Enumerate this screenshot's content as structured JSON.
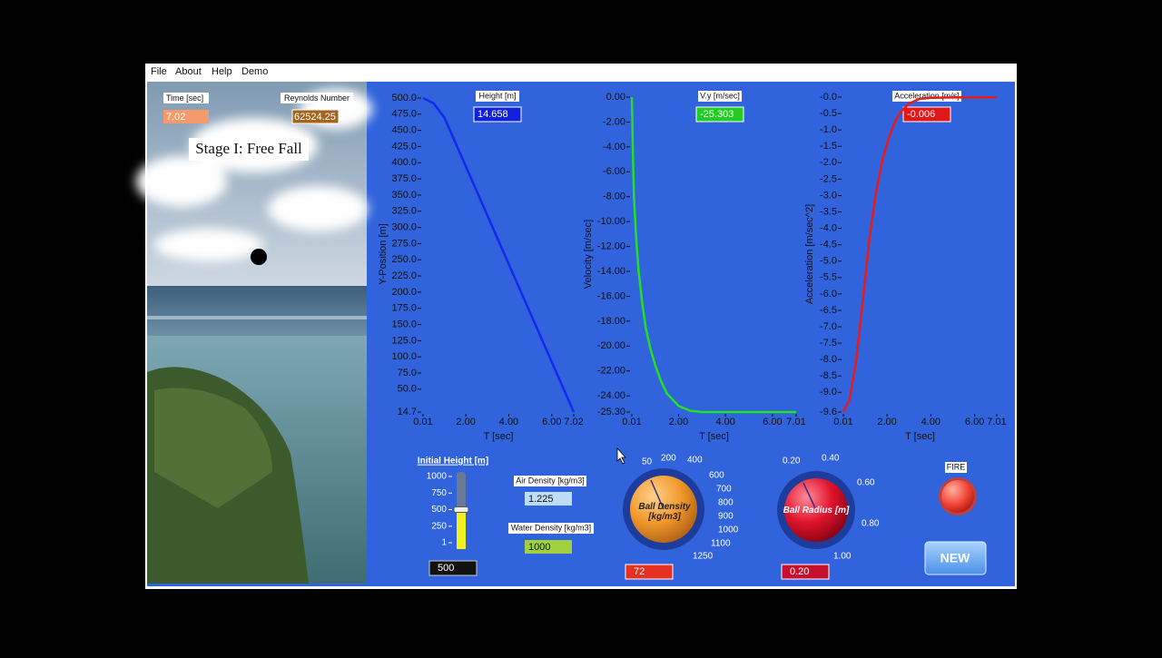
{
  "menu": [
    "File",
    "About",
    "Help",
    "Demo"
  ],
  "scene": {
    "time_label": "Time [sec]",
    "time_value": "7.02",
    "reynolds_label": "Reynolds Number",
    "reynolds_value": "62524.25",
    "stage": "Stage I: Free Fall"
  },
  "plots": [
    {
      "type": "line",
      "indicator_label": "Height [m]",
      "indicator_value": "14.658",
      "x_label": "T [sec]",
      "y_label": "Y-Position [m]",
      "color": "#1428f0",
      "x": [
        0.01,
        0.5,
        1,
        2,
        3,
        4,
        5,
        6,
        7.02
      ],
      "values": [
        500,
        492,
        470,
        394.4,
        318.8,
        243.2,
        167.6,
        92,
        14.7
      ],
      "xlim": [
        0.01,
        7.02
      ],
      "ylim": [
        14.7,
        500
      ],
      "xticks": [
        0.01,
        {
          "value": 2,
          "label": "2.00"
        },
        {
          "value": 4,
          "label": "4.00"
        },
        {
          "value": 6,
          "label": "6.00"
        },
        7.02
      ],
      "yticks": [
        {
          "value": 500,
          "label": "500.0"
        },
        {
          "value": 475,
          "label": "475.0"
        },
        {
          "value": 450,
          "label": "450.0"
        },
        {
          "value": 425,
          "label": "425.0"
        },
        {
          "value": 400,
          "label": "400.0"
        },
        {
          "value": 375,
          "label": "375.0"
        },
        {
          "value": 350,
          "label": "350.0"
        },
        {
          "value": 325,
          "label": "325.0"
        },
        {
          "value": 300,
          "label": "300.0"
        },
        {
          "value": 275,
          "label": "275.0"
        },
        {
          "value": 250,
          "label": "250.0"
        },
        {
          "value": 225,
          "label": "225.0"
        },
        {
          "value": 200,
          "label": "200.0"
        },
        {
          "value": 175,
          "label": "175.0"
        },
        {
          "value": 150,
          "label": "150.0"
        },
        {
          "value": 125,
          "label": "125.0"
        },
        {
          "value": 100,
          "label": "100.0"
        },
        {
          "value": 75,
          "label": "75.0"
        },
        {
          "value": 50,
          "label": "50.0"
        },
        14.7
      ]
    },
    {
      "type": "line",
      "indicator_label": "V.y [m/sec]",
      "indicator_value": "-25.303",
      "x_label": "T [sec]",
      "y_label": "Velocity [m/sec]",
      "color": "#22e022",
      "x": [
        0.01,
        0.05,
        0.1,
        0.2,
        0.3,
        0.45,
        0.6,
        0.8,
        1,
        1.25,
        1.5,
        2,
        2.5,
        3,
        4,
        5,
        6,
        7.01
      ],
      "values": [
        0,
        -4,
        -8,
        -11.5,
        -14,
        -16.5,
        -18.5,
        -20.2,
        -21.5,
        -22.8,
        -23.8,
        -24.8,
        -25.2,
        -25.3,
        -25.3,
        -25.3,
        -25.3,
        -25.3
      ],
      "xlim": [
        0.01,
        7.01
      ],
      "ylim": [
        -25.3,
        0
      ],
      "xticks": [
        0.01,
        {
          "value": 2,
          "label": "2.00"
        },
        {
          "value": 4,
          "label": "4.00"
        },
        {
          "value": 6,
          "label": "6.00"
        },
        7.01
      ],
      "yticks": [
        {
          "value": 0,
          "label": "0.00"
        },
        {
          "value": -2,
          "label": "-2.00"
        },
        {
          "value": -4,
          "label": "-4.00"
        },
        {
          "value": -6,
          "label": "-6.00"
        },
        {
          "value": -8,
          "label": "-8.00"
        },
        {
          "value": -10,
          "label": "-10.00"
        },
        {
          "value": -12,
          "label": "-12.00"
        },
        {
          "value": -14,
          "label": "-14.00"
        },
        {
          "value": -16,
          "label": "-16.00"
        },
        {
          "value": -18,
          "label": "-18.00"
        },
        {
          "value": -20,
          "label": "-20.00"
        },
        {
          "value": -22,
          "label": "-22.00"
        },
        {
          "value": -24,
          "label": "-24.00"
        },
        {
          "value": -25.3,
          "label": "-25.30"
        }
      ]
    },
    {
      "type": "line",
      "indicator_label": "Acceleration [m/s]",
      "indicator_value": "-0.006",
      "x_label": "T [sec]",
      "y_label": "Acceleration [m/sec^2]",
      "color": "#e81a1a",
      "x": [
        0.01,
        0.3,
        0.6,
        0.9,
        1.2,
        1.5,
        1.8,
        2.1,
        2.4,
        2.7,
        3,
        3.5,
        4,
        5,
        6,
        7.01
      ],
      "values": [
        -9.6,
        -9.2,
        -8,
        -6.2,
        -4.3,
        -2.9,
        -1.9,
        -1.2,
        -0.7,
        -0.4,
        -0.2,
        -0.05,
        -0.02,
        -0.01,
        -0.006,
        -0.006
      ],
      "xlim": [
        0.01,
        7.01
      ],
      "ylim": [
        -9.6,
        0
      ],
      "xticks": [
        0.01,
        {
          "value": 2,
          "label": "2.00"
        },
        {
          "value": 4,
          "label": "4.00"
        },
        {
          "value": 6,
          "label": "6.00"
        },
        7.01
      ],
      "yticks": [
        {
          "value": 0,
          "label": "-0.0"
        },
        -0.5,
        {
          "value": -1,
          "label": "-1.0"
        },
        -1.5,
        {
          "value": -2,
          "label": "-2.0"
        },
        -2.5,
        {
          "value": -3,
          "label": "-3.0"
        },
        -3.5,
        {
          "value": -4,
          "label": "-4.0"
        },
        -4.5,
        {
          "value": -5,
          "label": "-5.0"
        },
        -5.5,
        {
          "value": -6,
          "label": "-6.0"
        },
        -6.5,
        {
          "value": -7,
          "label": "-7.0"
        },
        -7.5,
        {
          "value": -8,
          "label": "-8.0"
        },
        -8.5,
        {
          "value": -9,
          "label": "-9.0"
        },
        -9.6
      ]
    }
  ],
  "controls": {
    "height_slider": {
      "label": "Initial Height [m]",
      "ticks": [
        1000,
        750,
        500,
        250,
        1
      ],
      "value": 500
    },
    "air_density": {
      "label": "Air Density [kg/m3]",
      "value": "1.225"
    },
    "water_density": {
      "label": "Water Density [kg/m3]",
      "value": "1000"
    },
    "ball_density": {
      "label": "Ball Density [kg/m3]",
      "scale": [
        "50",
        "200",
        "400",
        "600",
        "700",
        "800",
        "900",
        "1000",
        "1100",
        "1250"
      ],
      "value": "72"
    },
    "ball_radius": {
      "label": "Ball Radius [m]",
      "scale": [
        "0.20",
        "0.40",
        "0.60",
        "0.80",
        "1.00"
      ],
      "value": "0.20"
    },
    "fire": "FIRE",
    "new": "NEW"
  }
}
